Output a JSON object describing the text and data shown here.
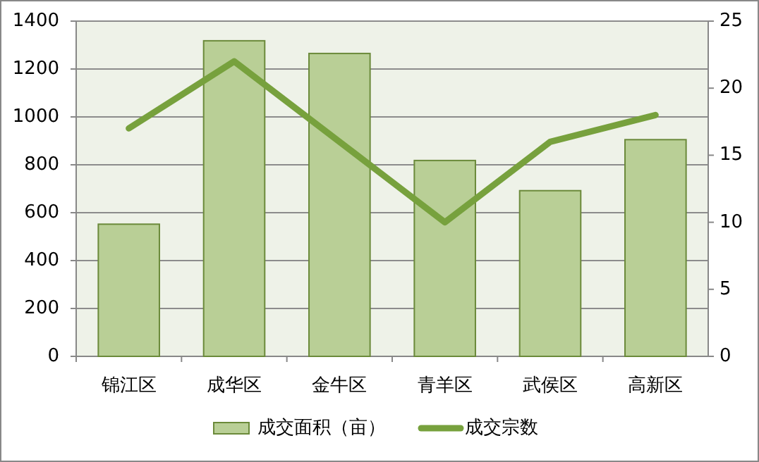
{
  "chart_data": {
    "type": "bar",
    "categories": [
      "锦江区",
      "成华区",
      "金牛区",
      "青羊区",
      "武侯区",
      "高新区"
    ],
    "series": [
      {
        "name": "成交面积（亩）",
        "color": "#b9cf96",
        "values": [
          552,
          1318,
          1265,
          818,
          692,
          905
        ]
      },
      {
        "name": "成交宗数",
        "type": "line",
        "axis": "y2",
        "color": "#77a13d",
        "values": [
          17,
          22,
          16,
          10,
          16,
          18
        ]
      }
    ],
    "ylim": [
      0,
      1400
    ],
    "yticks": [
      0,
      200,
      400,
      600,
      800,
      1000,
      1200,
      1400
    ],
    "y2lim": [
      0,
      25
    ],
    "y2ticks": [
      0,
      5,
      10,
      15,
      20,
      25
    ],
    "grid": "y",
    "legend": "bottom",
    "marker": "none"
  }
}
